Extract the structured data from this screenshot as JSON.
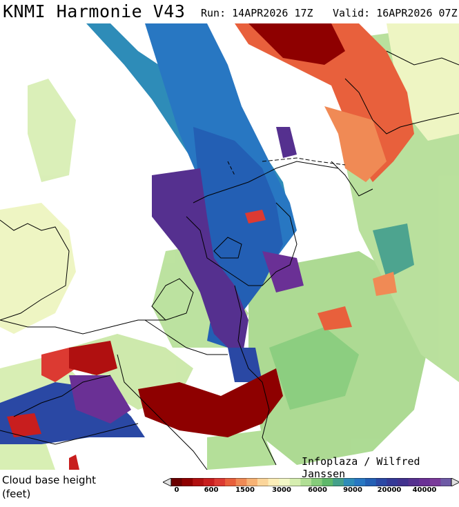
{
  "header": {
    "title": "KNMI Harmonie V43",
    "run": "Run: 14APR2026 17Z",
    "valid": "Valid: 16APR2026 07Z"
  },
  "map": {
    "credit": "Infoplaza / Wilfred Janssen"
  },
  "legend": {
    "title_line1": "Cloud base height",
    "title_line2": "(feet)",
    "ticks": [
      "0",
      "600",
      "1500",
      "3000",
      "6000",
      "9000",
      "20000",
      "40000"
    ],
    "colors": [
      "#6b0000",
      "#8e0000",
      "#b01010",
      "#c81e1e",
      "#dc3a32",
      "#e8603c",
      "#f08a55",
      "#f7b274",
      "#fbd59a",
      "#fdeeb8",
      "#f3f7c6",
      "#d6eeb0",
      "#b0de94",
      "#86cc7a",
      "#5eb86a",
      "#44a08a",
      "#2e8cb8",
      "#2877c2",
      "#235fb4",
      "#2a48a4",
      "#343896",
      "#41318e",
      "#55308f",
      "#6a3095",
      "#7a3a9a",
      "#6e5aa6"
    ],
    "arrow_color": "#e0e0e0"
  }
}
